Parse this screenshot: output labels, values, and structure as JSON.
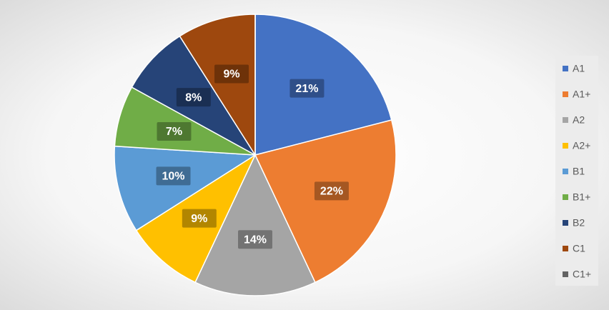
{
  "chart_data": {
    "type": "pie",
    "categories": [
      "A1",
      "A1+",
      "A2",
      "A2+",
      "B1",
      "B1+",
      "B2",
      "C1",
      "C1+"
    ],
    "values": [
      21,
      22,
      14,
      9,
      10,
      7,
      8,
      9,
      0
    ],
    "value_labels": [
      "21%",
      "22%",
      "14%",
      "9%",
      "10%",
      "7%",
      "8%",
      "9%",
      null
    ],
    "colors": [
      "#4472c4",
      "#ed7d31",
      "#a5a5a5",
      "#ffc000",
      "#5b9bd5",
      "#70ad47",
      "#264478",
      "#9e480e",
      "#636363"
    ],
    "legend": "right"
  }
}
